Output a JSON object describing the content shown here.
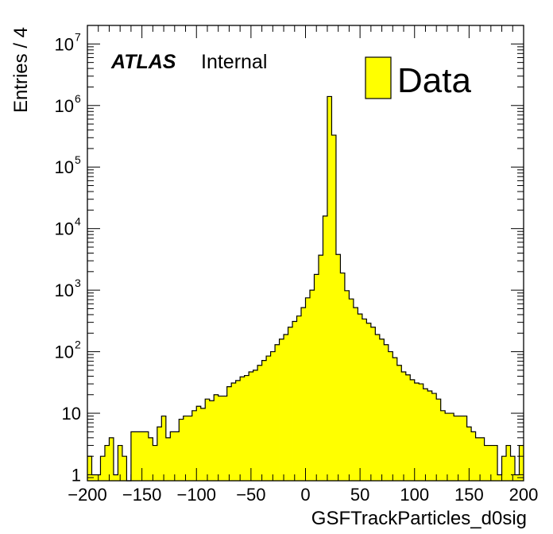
{
  "chart_data": {
    "type": "bar",
    "histogram": true,
    "xlabel": "GSFTrackParticles_d0sig",
    "ylabel": "Entries / 4",
    "x_bin_width": 4,
    "xlim": [
      -200,
      200
    ],
    "ylim": [
      0.8,
      20000000
    ],
    "yscale": "log",
    "x_tick_labels": [
      "−200",
      "−150",
      "−100",
      "−50",
      "0",
      "50",
      "100",
      "150",
      "200"
    ],
    "x_tick_values": [
      -200,
      -150,
      -100,
      -50,
      0,
      50,
      100,
      150,
      200
    ],
    "y_tick_values": [
      1,
      10,
      100,
      1000,
      10000,
      100000,
      1000000,
      10000000
    ],
    "y_tick_labels": [
      {
        "base": "1",
        "exp": ""
      },
      {
        "base": "10",
        "exp": ""
      },
      {
        "base": "10",
        "exp": "2"
      },
      {
        "base": "10",
        "exp": "3"
      },
      {
        "base": "10",
        "exp": "4"
      },
      {
        "base": "10",
        "exp": "5"
      },
      {
        "base": "10",
        "exp": "6"
      },
      {
        "base": "10",
        "exp": "7"
      }
    ],
    "bin_edges_start": -200,
    "values": [
      2,
      1,
      1,
      2,
      3,
      4,
      1,
      3,
      2,
      0,
      5,
      5,
      5,
      5,
      4,
      3,
      6,
      9,
      4,
      5,
      5,
      8,
      9,
      9,
      11,
      13,
      12,
      17,
      16,
      20,
      19,
      19,
      27,
      31,
      34,
      39,
      41,
      47,
      50,
      60,
      72,
      85,
      100,
      130,
      160,
      190,
      250,
      310,
      380,
      520,
      750,
      1000,
      1800,
      3700,
      16000,
      1400000,
      330000,
      3800,
      1900,
      980,
      720,
      520,
      410,
      340,
      290,
      250,
      190,
      160,
      130,
      100,
      80,
      60,
      47,
      42,
      35,
      31,
      30,
      25,
      23,
      21,
      17,
      11,
      10,
      10,
      9,
      9,
      9,
      6,
      5,
      4,
      4,
      3,
      3,
      3,
      1,
      2,
      3,
      2,
      1,
      3
    ],
    "colors": {
      "fill": "#ffff00",
      "line": "#000000"
    },
    "legend": {
      "entries": [
        {
          "label": "Data",
          "color": "#ffff00"
        }
      ],
      "position": "top-right"
    },
    "annotation": {
      "experiment": "ATLAS",
      "status": "Internal"
    }
  }
}
